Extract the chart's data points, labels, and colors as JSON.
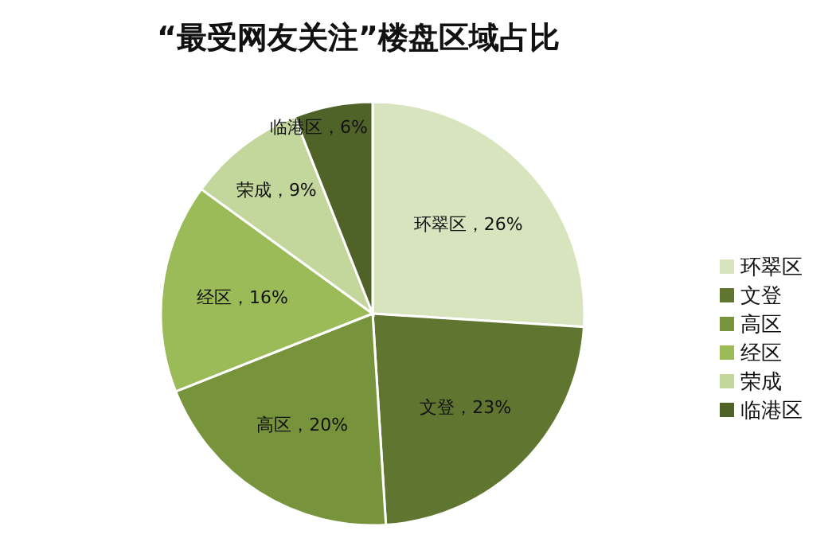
{
  "chart_data": {
    "type": "pie",
    "title": "“最受网友关注”楼盘区域占比",
    "categories": [
      "环翠区",
      "文登",
      "高区",
      "经区",
      "荣成",
      "临港区"
    ],
    "values": [
      26,
      23,
      20,
      16,
      9,
      6
    ],
    "colors": [
      "#d7e4bd",
      "#5f7530",
      "#77933c",
      "#9bbb59",
      "#c3d69b",
      "#4f6228"
    ],
    "value_labels": [
      "环翠区，26%",
      "文登，23%",
      "高区，20%",
      "经区，16%",
      "荣成，9%",
      "临港区，6%"
    ],
    "legend": "right"
  }
}
